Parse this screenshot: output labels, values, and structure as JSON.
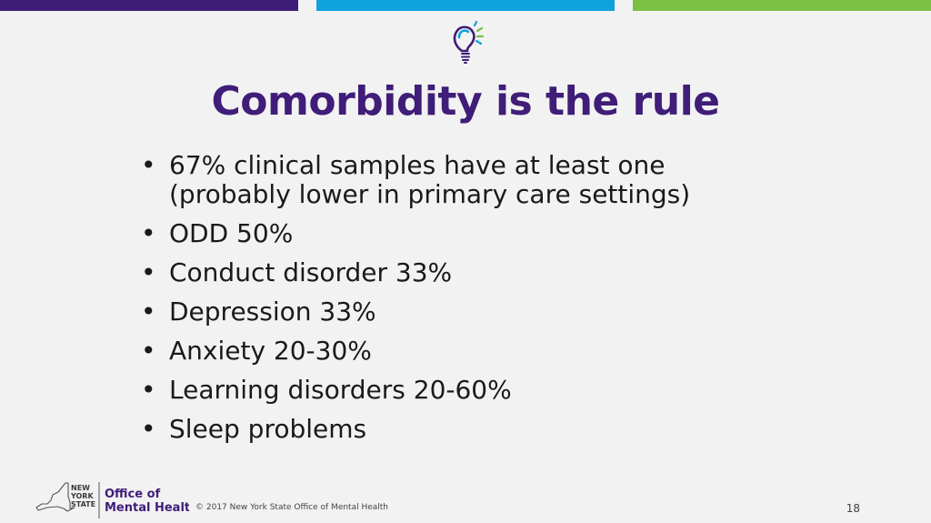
{
  "title": "Comorbidity is the rule",
  "bullets": [
    "67% clinical samples have at least one (probably lower in primary care settings)",
    "ODD 50%",
    "Conduct disorder 33%",
    "Depression 33%",
    "Anxiety 20-30%",
    "Learning disorders 20-60%",
    "Sleep problems"
  ],
  "bullet_symbol": "•",
  "footer": {
    "logo_state_line1": "NEW",
    "logo_state_line2": "YORK",
    "logo_state_line3": "STATE",
    "logo_office_line1": "Office of",
    "logo_office_line2": "Mental Health",
    "copyright": "© 2017 New York State Office of Mental Health",
    "page_number": "18"
  },
  "colors": {
    "purple": "#3f1d78",
    "blue": "#0ea1dc",
    "green": "#7ac143"
  },
  "icons": {
    "header_icon": "lightbulb-icon",
    "footer_map": "new-york-state-outline-icon"
  }
}
